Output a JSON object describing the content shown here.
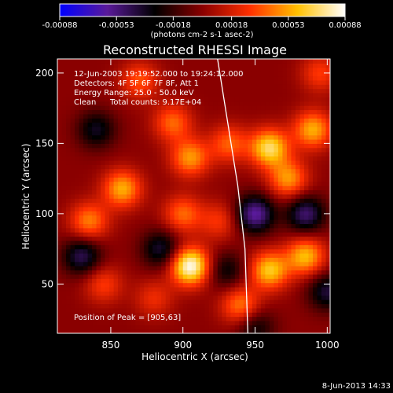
{
  "chart_data": {
    "type": "heatmap",
    "title": "Reconstructed RHESSI Image",
    "xlabel": "Heliocentric X (arcsec)",
    "ylabel": "Heliocentric Y (arcsec)",
    "x_range": [
      813,
      1002
    ],
    "y_range": [
      15,
      210
    ],
    "x_ticks": [
      850,
      900,
      950,
      1000
    ],
    "y_ticks": [
      50,
      100,
      150,
      200
    ],
    "colorbar": {
      "ticks": [
        "-0.00088",
        "-0.00053",
        "-0.00018",
        "0.00018",
        "0.00053",
        "0.00088"
      ],
      "tick_values": [
        -0.00088,
        -0.00053,
        -0.00018,
        0.00018,
        0.00053,
        0.00088
      ],
      "range": [
        -0.00088,
        0.00088
      ],
      "unit_label": "(photons cm-2 s-1 asec-2)",
      "colors": [
        "#0000ff",
        "#5a1a9a",
        "#000000",
        "#8a0000",
        "#ff3000",
        "#ffc000",
        "#ffffff"
      ]
    },
    "annotations": {
      "time_range": "12-Jun-2003 19:19:52.000 to 19:24:12.000",
      "detectors": "Detectors: 4F 5F 6F 7F 8F, Att 1",
      "energy": "Energy Range: 25.0 - 50.0 keV",
      "method": "Clean",
      "counts": "Total counts: 9.17E+04",
      "peak": "Position of Peak = [905,63]"
    },
    "peak": {
      "x": 905,
      "y": 63
    },
    "limb": [
      {
        "x": 924,
        "y": 210
      },
      {
        "x": 931,
        "y": 165
      },
      {
        "x": 938,
        "y": 120
      },
      {
        "x": 943,
        "y": 75
      },
      {
        "x": 945,
        "y": 15
      }
    ],
    "sources": [
      {
        "x": 905,
        "y": 63,
        "value": 0.00088
      },
      {
        "x": 858,
        "y": 118,
        "value": 0.00055
      },
      {
        "x": 835,
        "y": 95,
        "value": 0.00045
      },
      {
        "x": 905,
        "y": 140,
        "value": 0.0005
      },
      {
        "x": 893,
        "y": 165,
        "value": 0.0004
      },
      {
        "x": 932,
        "y": 150,
        "value": 0.00038
      },
      {
        "x": 960,
        "y": 147,
        "value": 0.0007
      },
      {
        "x": 990,
        "y": 160,
        "value": 0.00055
      },
      {
        "x": 973,
        "y": 125,
        "value": 0.0005
      },
      {
        "x": 960,
        "y": 60,
        "value": 0.00062
      },
      {
        "x": 940,
        "y": 35,
        "value": 0.00045
      },
      {
        "x": 985,
        "y": 70,
        "value": 0.00058
      },
      {
        "x": 900,
        "y": 100,
        "value": 0.0004
      },
      {
        "x": 870,
        "y": 195,
        "value": 0.00035
      },
      {
        "x": 845,
        "y": 50,
        "value": 0.0003
      },
      {
        "x": 925,
        "y": 95,
        "value": 0.00028
      },
      {
        "x": 995,
        "y": 200,
        "value": 0.0003
      },
      {
        "x": 880,
        "y": 40,
        "value": 0.00025
      },
      {
        "x": 950,
        "y": 100,
        "value": -0.0006
      },
      {
        "x": 830,
        "y": 70,
        "value": -0.00045
      },
      {
        "x": 985,
        "y": 100,
        "value": -0.0005
      },
      {
        "x": 885,
        "y": 75,
        "value": -0.0004
      },
      {
        "x": 840,
        "y": 160,
        "value": -0.00035
      },
      {
        "x": 930,
        "y": 60,
        "value": -0.0003
      },
      {
        "x": 1000,
        "y": 45,
        "value": -0.0004
      },
      {
        "x": 950,
        "y": 20,
        "value": -0.0003
      }
    ]
  },
  "footer": {
    "date": "8-Jun-2013 14:33"
  }
}
